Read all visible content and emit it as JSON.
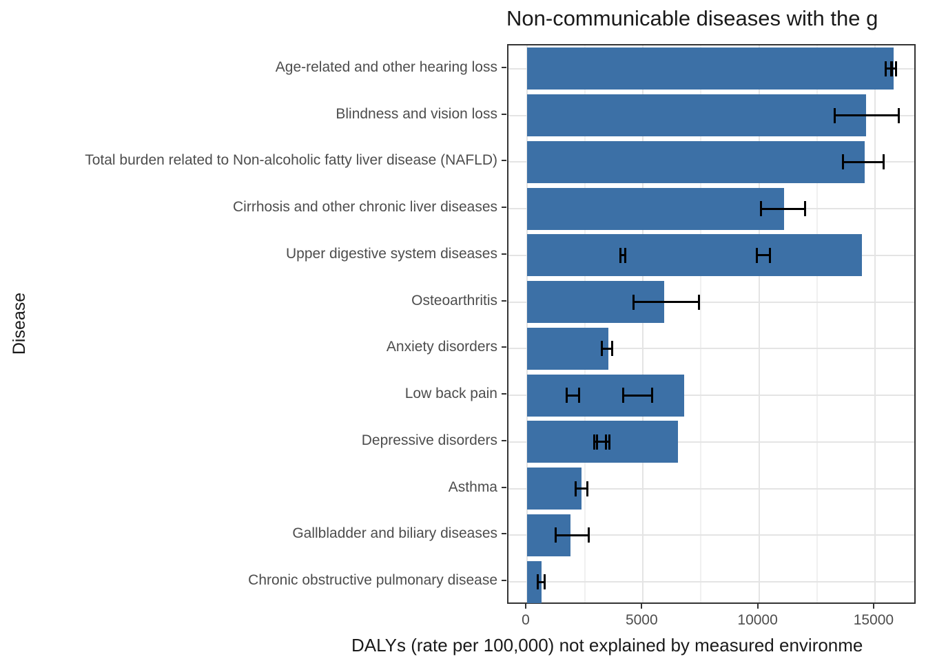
{
  "chart_data": {
    "type": "bar",
    "orientation": "horizontal",
    "title": "Non-communicable diseases with the g",
    "xlabel": "DALYs (rate per 100,000) not explained by measured environme",
    "ylabel": "Disease",
    "bar_color": "#3c70a6",
    "error_bar_color": "#000000",
    "x_ticks": [
      0,
      5000,
      10000,
      15000
    ],
    "x_minor_ticks": [
      2500,
      7500,
      12500
    ],
    "xlim": [
      0,
      16800
    ],
    "grid": "on",
    "legend": "none",
    "categories": [
      "Age-related and other hearing loss",
      "Blindness and vision loss",
      "Total burden related to Non-alcoholic fatty liver disease (NAFLD)",
      "Cirrhosis and other chronic liver diseases",
      "Upper digestive system diseases",
      "Osteoarthritis",
      "Anxiety disorders",
      "Low back pain",
      "Depressive disorders",
      "Asthma",
      "Gallbladder and biliary diseases",
      "Chronic obstructive pulmonary disease"
    ],
    "values": [
      15800,
      14620,
      14560,
      11080,
      14430,
      5920,
      3500,
      6770,
      6510,
      2350,
      1870,
      620
    ],
    "error_bars": [
      [
        [
          15450,
          15710
        ],
        [
          15710,
          15930
        ]
      ],
      [
        [
          13260,
          16040
        ]
      ],
      [
        [
          13620,
          15380
        ]
      ],
      [
        [
          10060,
          12000
        ]
      ],
      [
        [
          4000,
          4250
        ],
        [
          9880,
          10500
        ]
      ],
      [
        [
          4570,
          7430
        ]
      ],
      [
        [
          3200,
          3670
        ]
      ],
      [
        [
          1700,
          2270
        ],
        [
          4120,
          5400
        ]
      ],
      [
        [
          2880,
          3425
        ],
        [
          3000,
          3573
        ]
      ],
      [
        [
          2070,
          2610
        ]
      ],
      [
        [
          1230,
          2680
        ]
      ],
      [
        [
          440,
          770
        ]
      ]
    ]
  }
}
